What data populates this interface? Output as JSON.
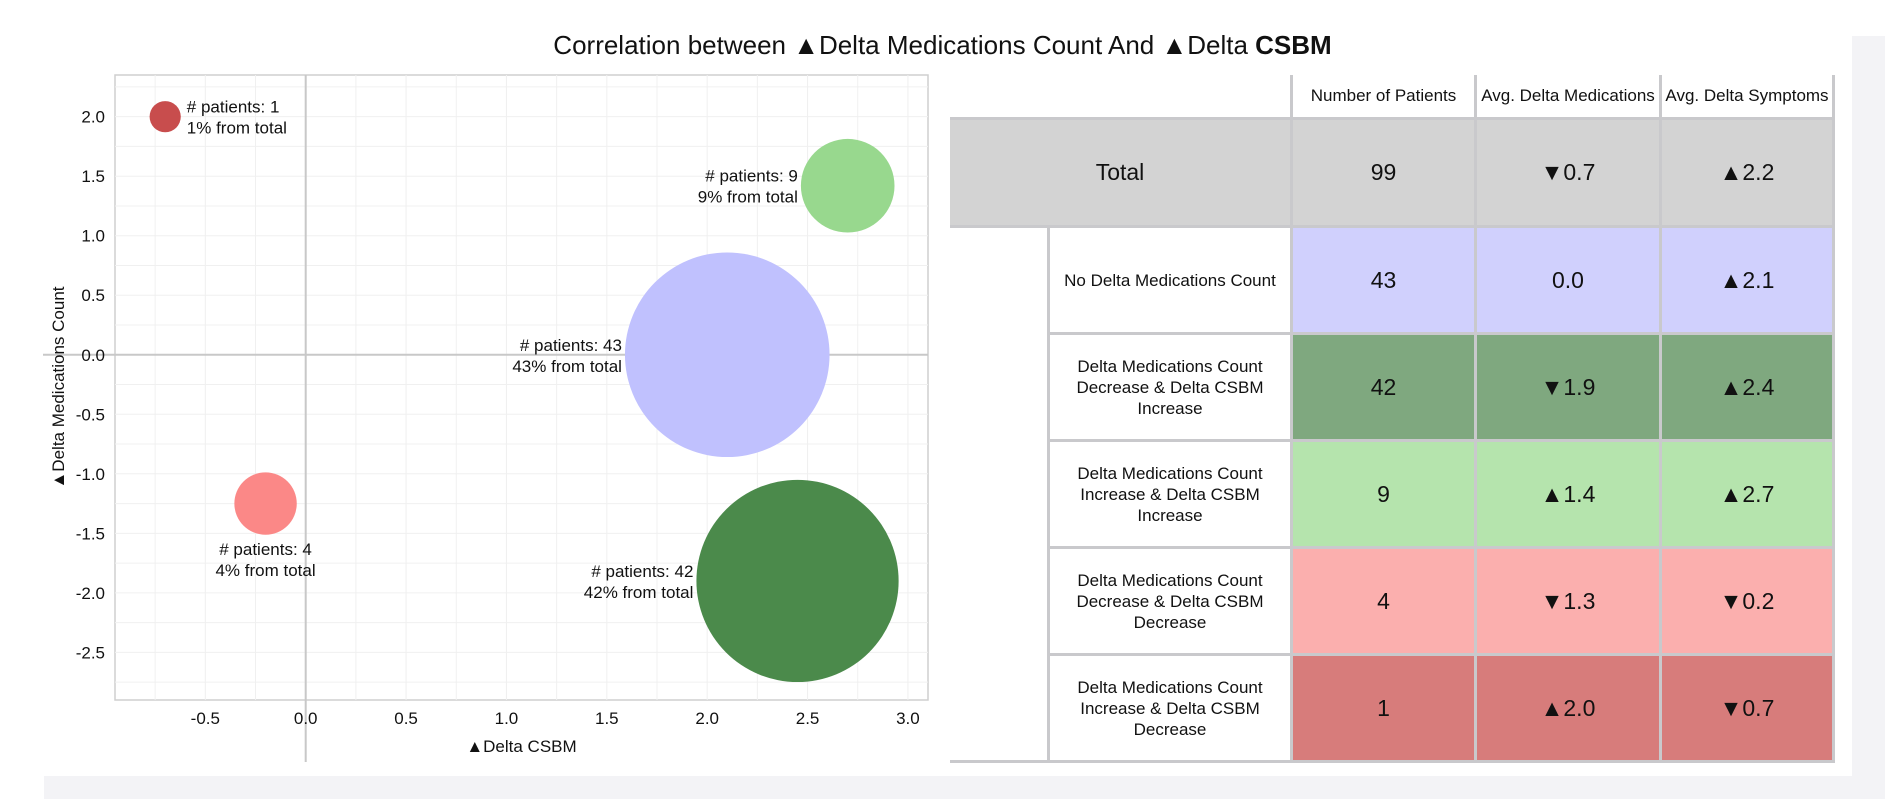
{
  "title": {
    "prefix": "Correlation between ▲Delta Medications Count And ▲Delta ",
    "bold": "CSBM"
  },
  "chart_data": {
    "type": "scatter",
    "xlabel": "▲Delta CSBM",
    "ylabel": "▲Delta Medications Count",
    "xlim": [
      -0.95,
      3.1
    ],
    "ylim": [
      -2.9,
      2.35
    ],
    "x_ticks": [
      -0.5,
      0.0,
      0.5,
      1.0,
      1.5,
      2.0,
      2.5,
      3.0
    ],
    "x_tick_labels": [
      "-0.5",
      "0.0",
      "0.5",
      "1.0",
      "1.5",
      "2.0",
      "2.5",
      "3.0"
    ],
    "y_ticks": [
      2.0,
      1.5,
      1.0,
      0.5,
      0.0,
      -0.5,
      -1.0,
      -1.5,
      -2.0,
      -2.5
    ],
    "y_tick_labels": [
      "2.0",
      "1.5",
      "1.0",
      "0.5",
      "0.0",
      "-0.5",
      "-1.0",
      "-1.5",
      "-2.0",
      "-2.5"
    ],
    "grid": true,
    "bubbles": [
      {
        "x": -0.7,
        "y": 2.0,
        "patients": 1,
        "color": "#c84d4d",
        "label1": "# patients: 1",
        "label2": "1% from total",
        "label_side": "right"
      },
      {
        "x": 2.7,
        "y": 1.42,
        "patients": 9,
        "color": "#98d88e",
        "label1": "# patients: 9",
        "label2": "9% from total",
        "label_side": "left"
      },
      {
        "x": 2.1,
        "y": 0.0,
        "patients": 43,
        "color": "#c0c1fe",
        "label1": "# patients: 43",
        "label2": "43% from total",
        "label_side": "left"
      },
      {
        "x": -0.2,
        "y": -1.25,
        "patients": 4,
        "color": "#fb8887",
        "label1": "# patients: 4",
        "label2": "4% from total",
        "label_side": "below"
      },
      {
        "x": 2.45,
        "y": -1.9,
        "patients": 42,
        "color": "#4b8a4b",
        "label1": "# patients: 42",
        "label2": "42% from total",
        "label_side": "left"
      }
    ]
  },
  "table": {
    "headers": [
      "Number of Patients",
      "Avg. Delta Medications",
      "Avg. Delta Symptoms"
    ],
    "total": {
      "label": "Total",
      "values": [
        "99",
        "▼0.7",
        "▲2.2"
      ],
      "color": "#d3d3d3"
    },
    "rows": [
      {
        "label": "No Delta Medications Count",
        "values": [
          "43",
          "0.0",
          "▲2.1"
        ],
        "color": "#d0d0fd"
      },
      {
        "label": "Delta Medications Count Decrease & Delta CSBM Increase",
        "values": [
          "42",
          "▼1.9",
          "▲2.4"
        ],
        "color": "#7fa87f"
      },
      {
        "label": "Delta Medications Count Increase & Delta CSBM Increase",
        "values": [
          "9",
          "▲1.4",
          "▲2.7"
        ],
        "color": "#b5e4ad"
      },
      {
        "label": "Delta Medications Count Decrease & Delta CSBM Decrease",
        "values": [
          "4",
          "▼1.3",
          "▼0.2"
        ],
        "color": "#fbafae"
      },
      {
        "label": "Delta Medications Count Increase & Delta CSBM Decrease",
        "values": [
          "1",
          "▲2.0",
          "▼0.7"
        ],
        "color": "#d77c7b"
      }
    ]
  }
}
